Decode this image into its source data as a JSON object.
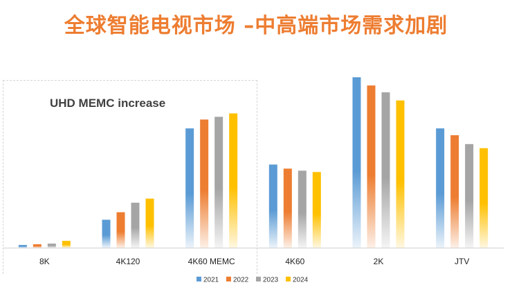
{
  "title": "全球智能电视市场 –中高端市场需求加剧",
  "colors": {
    "title": "#ED7D31",
    "axis": "#d0d0d0"
  },
  "chart_data": {
    "type": "bar",
    "categories": [
      "8K",
      "4K120",
      "4K60 MEMC",
      "4K60",
      "2K",
      "JTV"
    ],
    "annotation": "UHD MEMC increase",
    "ylim": [
      0,
      250
    ],
    "grid": false,
    "legend_position": "bottom",
    "series": [
      {
        "name": "2021",
        "color": "#5B9BD5",
        "values": [
          4,
          41,
          175,
          122,
          250,
          175
        ]
      },
      {
        "name": "2022",
        "color": "#ED7D31",
        "values": [
          5,
          52,
          188,
          116,
          238,
          165
        ]
      },
      {
        "name": "2023",
        "color": "#A5A5A5",
        "values": [
          6,
          66,
          192,
          113,
          228,
          152
        ]
      },
      {
        "name": "2024",
        "color": "#FFC000",
        "values": [
          10,
          72,
          197,
          111,
          216,
          146
        ]
      }
    ]
  }
}
